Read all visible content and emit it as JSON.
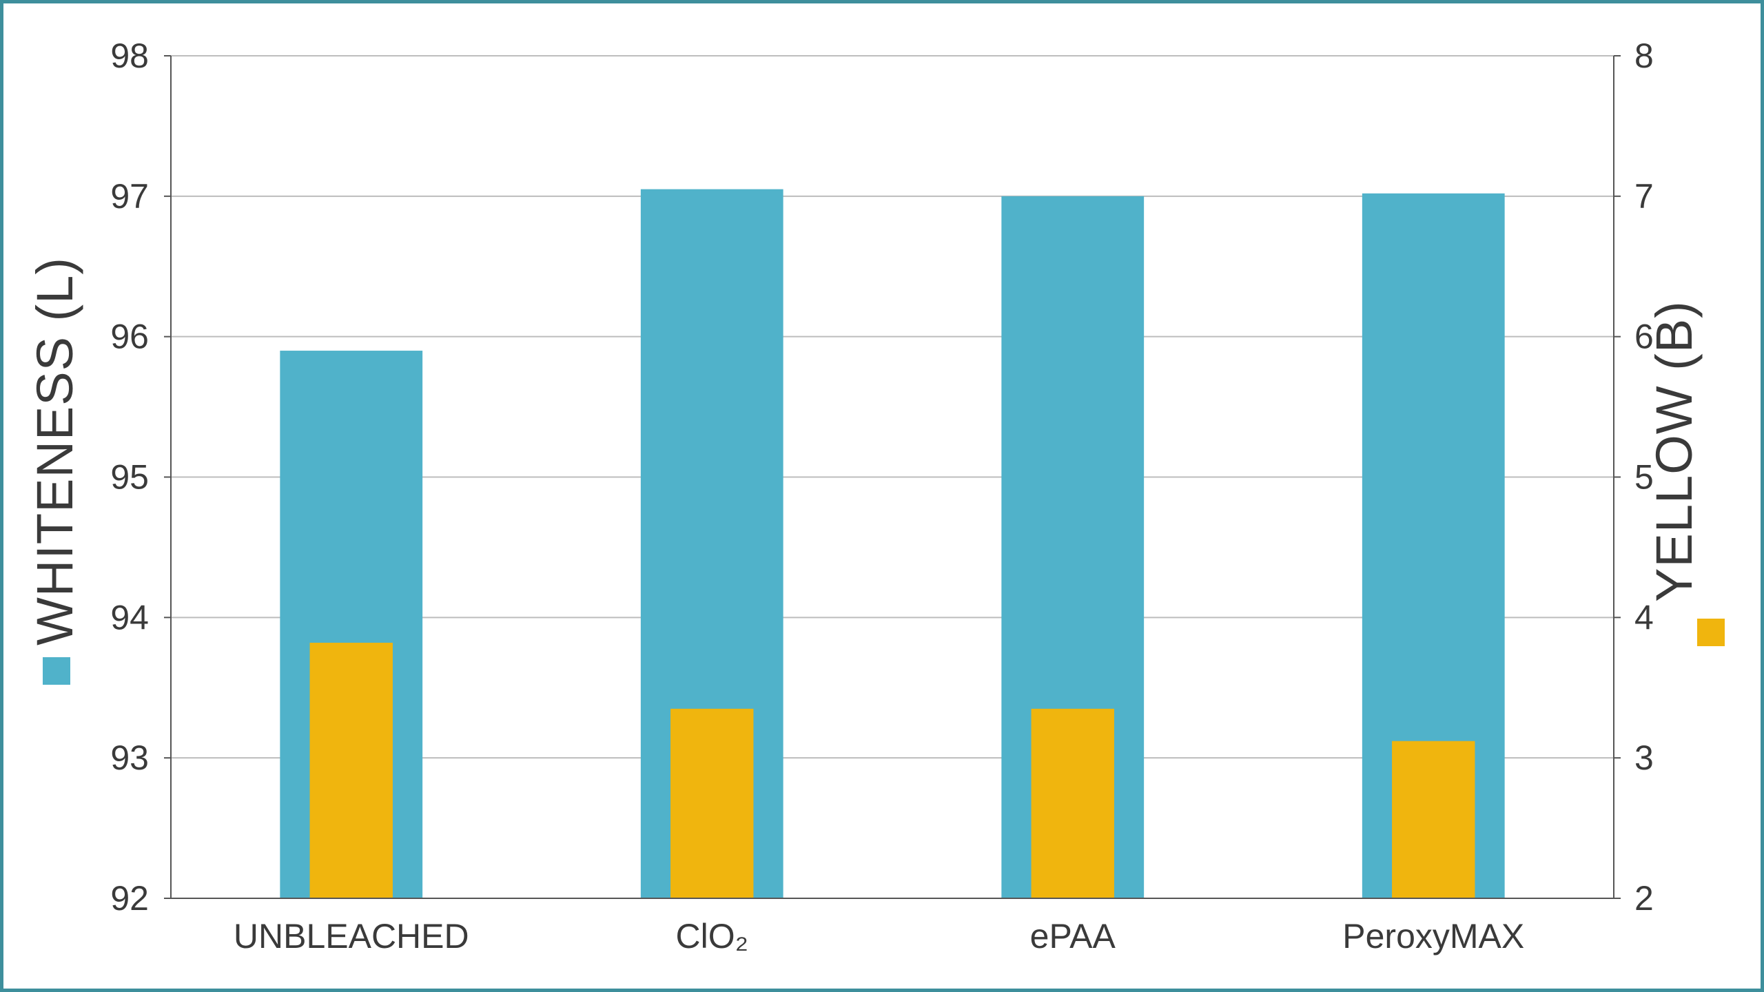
{
  "chart_data": {
    "type": "bar",
    "title": "",
    "categories": [
      "UNBLEACHED",
      "ClO₂",
      "ePAA",
      "PeroxyMAX"
    ],
    "series": [
      {
        "name": "WHITENESS (L)",
        "axis": "left",
        "color": "#50b2ca",
        "values": [
          95.9,
          97.05,
          97.0,
          97.02
        ]
      },
      {
        "name": "YELLOW (B)",
        "axis": "right",
        "color": "#f0b50e",
        "values": [
          3.82,
          3.35,
          3.35,
          3.12
        ]
      }
    ],
    "left_axis": {
      "label": "WHITENESS (L)",
      "ylim": [
        92,
        98
      ],
      "ticks": [
        "92",
        "93",
        "94",
        "95",
        "96",
        "97",
        "98"
      ]
    },
    "right_axis": {
      "label": "YELLOW (B)",
      "ylim": [
        2,
        8
      ],
      "ticks": [
        "2",
        "3",
        "4",
        "5",
        "6",
        "7",
        "8"
      ]
    },
    "grid": true,
    "legend": "swatches beside axis titles",
    "colors": {
      "frame": "#3e8f9c",
      "grid": "#bdbdbd",
      "axis": "#555555",
      "text": "#3a3a3a"
    }
  }
}
